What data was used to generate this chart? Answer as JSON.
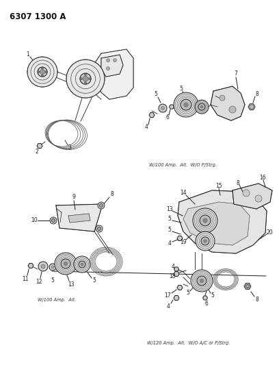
{
  "title": "6307 1300 A",
  "bg_color": "#ffffff",
  "line_color": "#1a1a1a",
  "caption_top_right": "W/100 Amp.  Alt.  W/O P/Strg.",
  "caption_bottom_left": "W/100 Amp.  Alt.",
  "caption_bottom_right": "W/120 Amp.  Alt.  W/O A/C or P/Strg.",
  "figsize": [
    4.08,
    5.33
  ],
  "dpi": 100
}
